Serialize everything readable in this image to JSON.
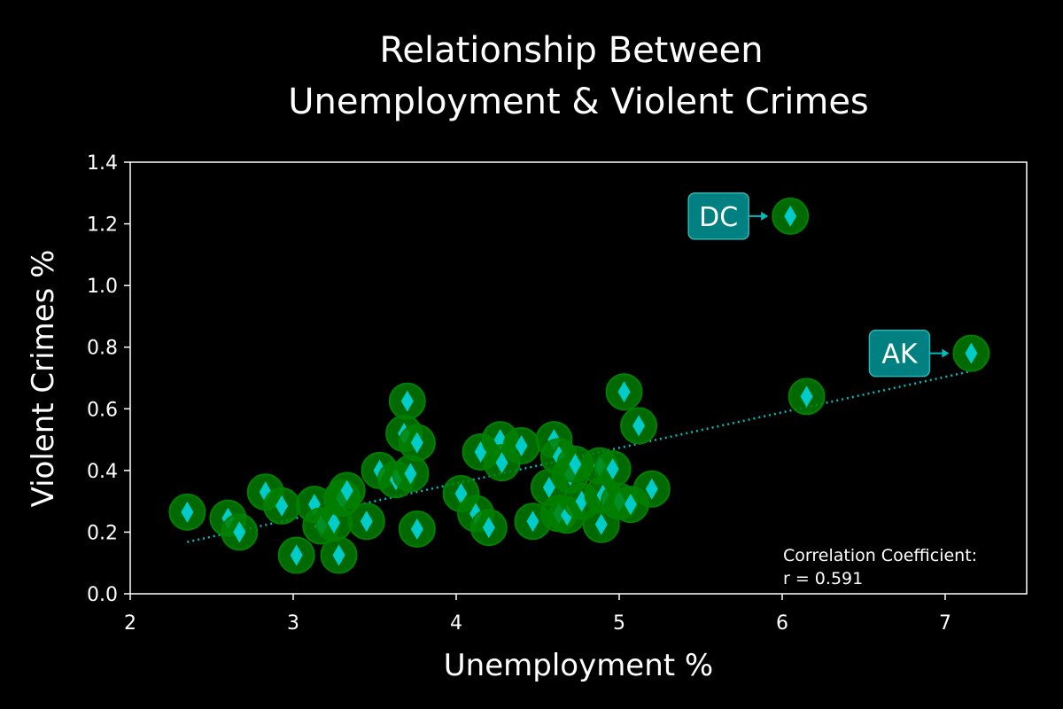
{
  "chart_data": {
    "type": "scatter",
    "title": [
      "Relationship Between",
      "Unemployment & Violent Crimes"
    ],
    "xlabel": "Unemployment %",
    "ylabel": "Violent Crimes %",
    "xlim": [
      2,
      7.5
    ],
    "ylim": [
      0,
      1.4
    ],
    "xticks": [
      2,
      3,
      4,
      5,
      6,
      7
    ],
    "yticks": [
      0.0,
      0.2,
      0.4,
      0.6,
      0.8,
      1.0,
      1.2,
      1.4
    ],
    "ytick_labels": [
      "0.0",
      "0.2",
      "0.4",
      "0.6",
      "0.8",
      "1.0",
      "1.2",
      "1.4"
    ],
    "grid": false,
    "colors": {
      "background": "#000000",
      "marker_outer": "#008000",
      "marker_inner": "#00cccc",
      "trendline": "#00bcbc",
      "annotation_box": "#008080"
    },
    "points": [
      [
        2.35,
        0.265
      ],
      [
        2.6,
        0.245
      ],
      [
        2.67,
        0.2
      ],
      [
        2.83,
        0.33
      ],
      [
        2.93,
        0.285
      ],
      [
        3.02,
        0.125
      ],
      [
        3.13,
        0.29
      ],
      [
        3.17,
        0.22
      ],
      [
        3.25,
        0.23
      ],
      [
        3.28,
        0.125
      ],
      [
        3.3,
        0.31
      ],
      [
        3.33,
        0.335
      ],
      [
        3.45,
        0.235
      ],
      [
        3.53,
        0.4
      ],
      [
        3.63,
        0.37
      ],
      [
        3.68,
        0.52
      ],
      [
        3.7,
        0.625
      ],
      [
        3.72,
        0.39
      ],
      [
        3.76,
        0.49
      ],
      [
        3.76,
        0.21
      ],
      [
        4.03,
        0.325
      ],
      [
        4.12,
        0.26
      ],
      [
        4.15,
        0.46
      ],
      [
        4.2,
        0.215
      ],
      [
        4.27,
        0.5
      ],
      [
        4.28,
        0.425
      ],
      [
        4.4,
        0.48
      ],
      [
        4.47,
        0.235
      ],
      [
        4.57,
        0.345
      ],
      [
        4.6,
        0.5
      ],
      [
        4.63,
        0.445
      ],
      [
        4.63,
        0.26
      ],
      [
        4.68,
        0.255
      ],
      [
        4.7,
        0.385
      ],
      [
        4.73,
        0.42
      ],
      [
        4.77,
        0.3
      ],
      [
        4.88,
        0.415
      ],
      [
        4.89,
        0.225
      ],
      [
        4.9,
        0.32
      ],
      [
        4.96,
        0.405
      ],
      [
        5.0,
        0.3
      ],
      [
        5.03,
        0.655
      ],
      [
        5.07,
        0.29
      ],
      [
        5.12,
        0.545
      ],
      [
        5.2,
        0.34
      ],
      [
        6.15,
        0.64
      ]
    ],
    "annotations": [
      {
        "label": "DC",
        "x": 6.05,
        "y": 1.225
      },
      {
        "label": "AK",
        "x": 7.16,
        "y": 0.78
      }
    ],
    "trendline": {
      "x": [
        2.35,
        7.16
      ],
      "y": [
        0.168,
        0.722
      ],
      "style": "dotted"
    },
    "correlation_text": [
      "Correlation Coefficient:",
      "r = 0.591"
    ]
  }
}
